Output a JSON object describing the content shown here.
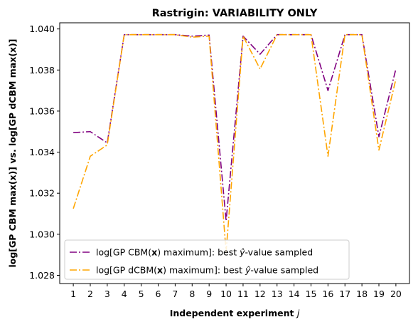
{
  "chart_data": {
    "type": "line",
    "title": "Rastrigin: VARIABILITY ONLY",
    "xlabel_prefix": "Independent experiment ",
    "xlabel_var": "j",
    "ylabel": "log[GP CBM max(x)] vs. log[GP dCBM max(x)]",
    "x": [
      1,
      2,
      3,
      4,
      5,
      6,
      7,
      8,
      9,
      10,
      11,
      12,
      13,
      14,
      15,
      16,
      17,
      18,
      19,
      20
    ],
    "xticks": [
      "1",
      "2",
      "3",
      "4",
      "5",
      "6",
      "7",
      "8",
      "9",
      "10",
      "11",
      "12",
      "13",
      "14",
      "15",
      "16",
      "17",
      "18",
      "19",
      "20"
    ],
    "ylim": [
      1.0276,
      1.0403
    ],
    "yticks": [
      1.028,
      1.03,
      1.032,
      1.034,
      1.036,
      1.038,
      1.04
    ],
    "ytick_labels": [
      "1.028",
      "1.030",
      "1.032",
      "1.034",
      "1.036",
      "1.038",
      "1.040"
    ],
    "grid": false,
    "legend_position": "lower-left",
    "series": [
      {
        "legend_pre": "log[GP CBM(",
        "legend_bold": "x",
        "legend_mid": ") maximum]: best ",
        "legend_hat": "ŷ",
        "legend_post": "-value sampled",
        "color": "#800080",
        "dash": "10,3,2,3",
        "values": [
          1.03495,
          1.035,
          1.03445,
          1.03972,
          1.03972,
          1.03972,
          1.03972,
          1.03965,
          1.0397,
          1.03065,
          1.03965,
          1.03877,
          1.03972,
          1.03972,
          1.03972,
          1.037,
          1.03972,
          1.03972,
          1.03475,
          1.03805
        ]
      },
      {
        "legend_pre": "log[GP dCBM(",
        "legend_bold": "x",
        "legend_mid": ") maximum]: best ",
        "legend_hat": "ŷ",
        "legend_post": "-value sampled",
        "color": "#FFA500",
        "dash": "10,3,2,3",
        "values": [
          1.03125,
          1.0338,
          1.03435,
          1.03972,
          1.03972,
          1.03972,
          1.03972,
          1.0396,
          1.03965,
          1.02915,
          1.03965,
          1.03805,
          1.03972,
          1.03972,
          1.03972,
          1.0338,
          1.03972,
          1.03972,
          1.0341,
          1.03755
        ]
      }
    ]
  }
}
